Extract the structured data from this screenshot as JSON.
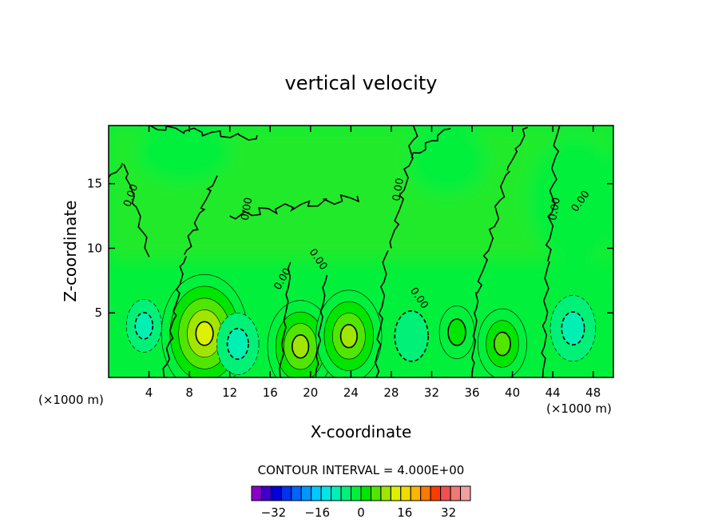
{
  "chart_data": {
    "type": "heatmap",
    "title": "vertical velocity",
    "xlabel": "X-coordinate",
    "ylabel": "Z-coordinate",
    "x_unit_label": "(×1000 m)",
    "y_unit_label": "(×1000 m)",
    "xlim": [
      0,
      50
    ],
    "ylim": [
      0,
      19.5
    ],
    "x_ticks": [
      4,
      8,
      12,
      16,
      20,
      24,
      28,
      32,
      36,
      40,
      44,
      48
    ],
    "y_ticks": [
      5,
      10,
      15
    ],
    "contour_interval_label": "CONTOUR INTERVAL = 4.000E+00",
    "contour_label_text": "0.00",
    "colorbar": {
      "tick_labels": [
        "-32",
        "-16",
        "0",
        "16",
        "32"
      ],
      "tick_values": [
        -32,
        -16,
        0,
        16,
        32
      ],
      "min": -40,
      "max": 40,
      "interval": 4,
      "colors": [
        "#8a00c8",
        "#3c00c8",
        "#0000dc",
        "#0032f0",
        "#0064ff",
        "#0096ff",
        "#00c8ff",
        "#00e6e6",
        "#00f0b4",
        "#00f078",
        "#00f03c",
        "#00e600",
        "#50e600",
        "#a0e600",
        "#dcf000",
        "#f0dc00",
        "#ffb400",
        "#ff7800",
        "#ff3c00",
        "#f05050",
        "#f07878",
        "#f0a0a0"
      ]
    },
    "features": [
      {
        "x": 9.5,
        "y": 3.4,
        "peak": 20,
        "kind": "updraft"
      },
      {
        "x": 19.0,
        "y": 2.4,
        "peak": 14,
        "kind": "updraft"
      },
      {
        "x": 23.8,
        "y": 3.2,
        "peak": 14,
        "kind": "updraft"
      },
      {
        "x": 34.5,
        "y": 3.5,
        "peak": 5,
        "kind": "updraft"
      },
      {
        "x": 39.0,
        "y": 2.6,
        "peak": 9,
        "kind": "updraft"
      },
      {
        "x": 12.8,
        "y": 2.6,
        "peak": -7,
        "kind": "downdraft"
      },
      {
        "x": 3.5,
        "y": 4.0,
        "peak": -5,
        "kind": "downdraft"
      },
      {
        "x": 46.0,
        "y": 3.8,
        "peak": -8,
        "kind": "downdraft"
      },
      {
        "x": 30.0,
        "y": 3.2,
        "peak": -3,
        "kind": "downdraft"
      }
    ]
  }
}
